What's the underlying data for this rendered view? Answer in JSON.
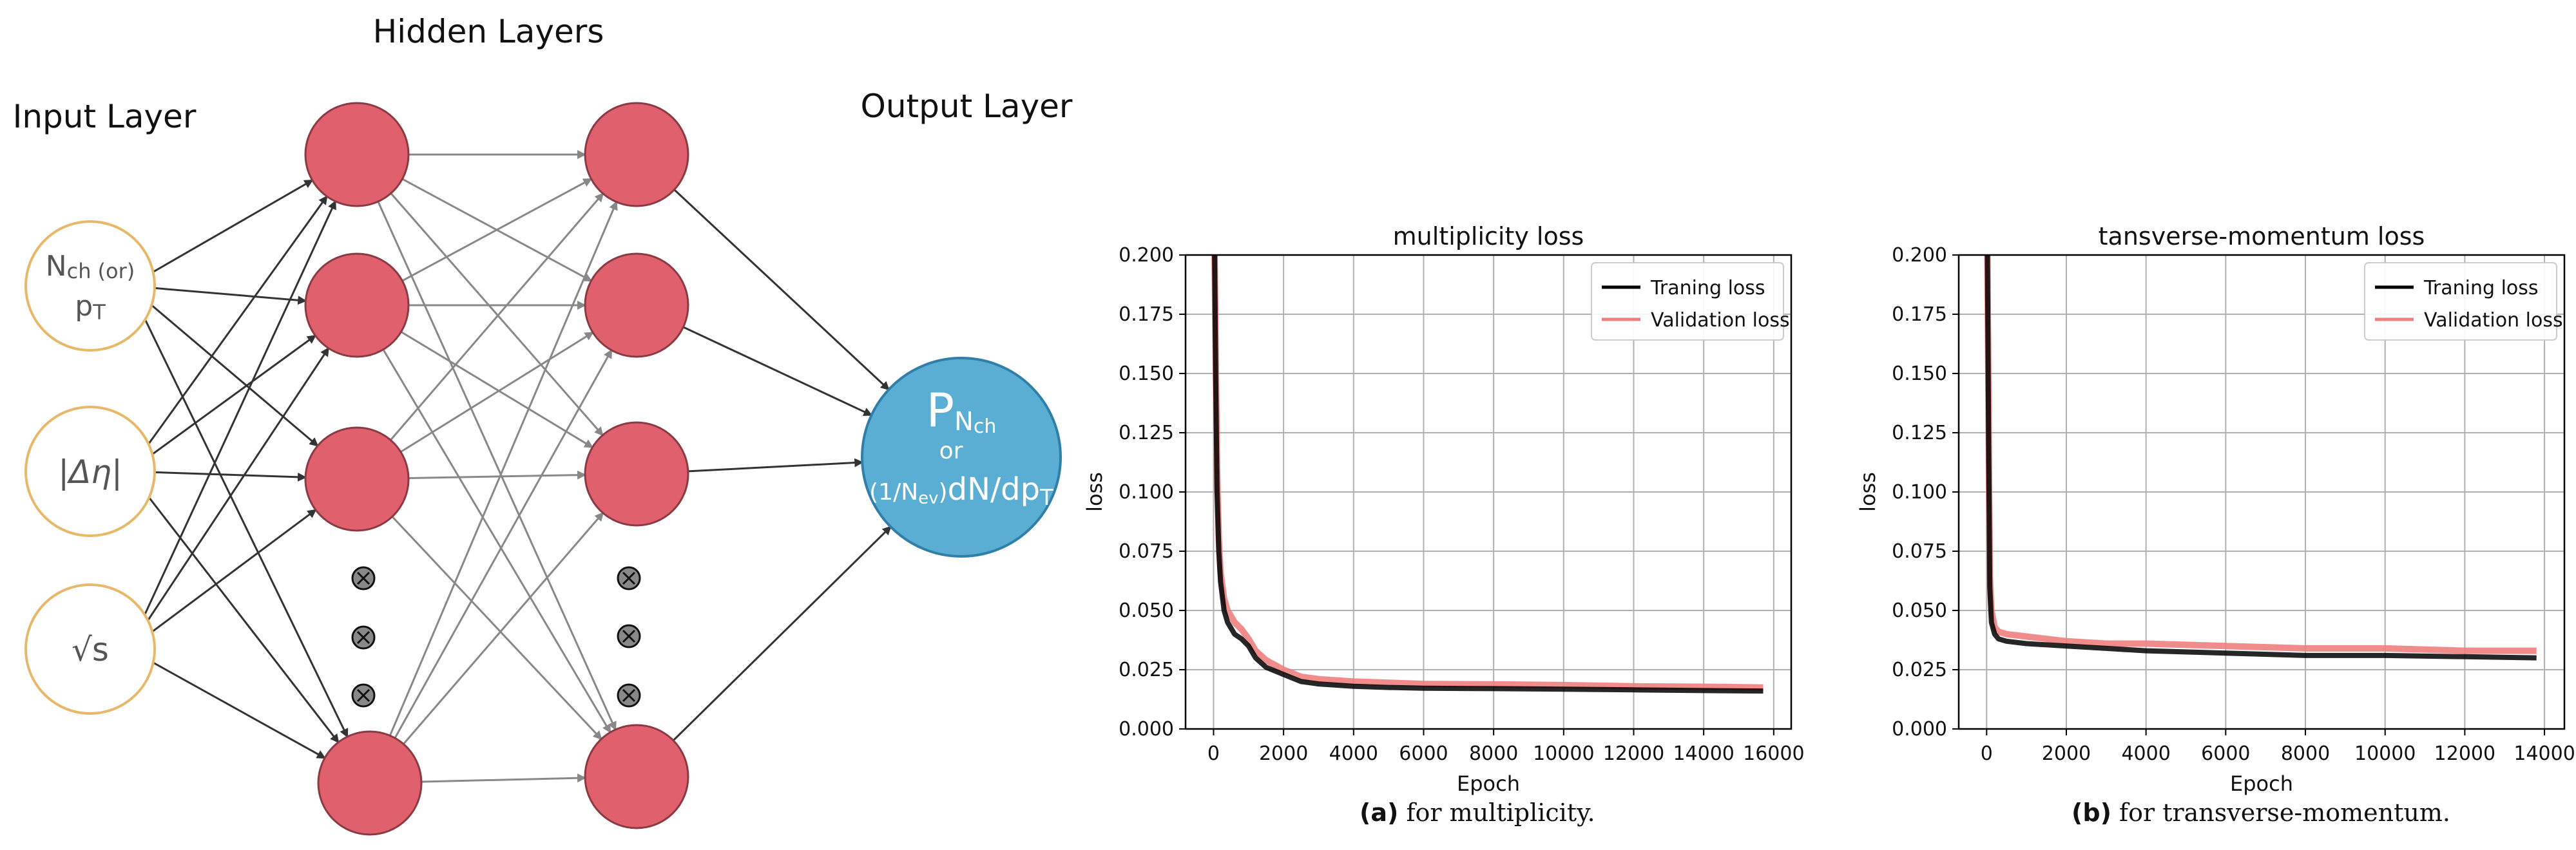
{
  "diagram": {
    "hidden_title": "Hidden Layers",
    "input_title": "Input Layer",
    "output_title": "Output Layer",
    "inputs": [
      {
        "main": "N",
        "sub": "ch",
        "extra": "(or)",
        "line2": "p",
        "line2_sub": "T"
      },
      {
        "label": "|Δη|"
      },
      {
        "label": "√s"
      }
    ],
    "output": {
      "main": "P",
      "main_sub": "N",
      "main_sub2": "ch",
      "mid": "or",
      "bottom_prefix": "(1/N",
      "bottom_prefix_sub": "ev",
      "bottom_close": ")",
      "bottom_main": "dN/dp",
      "bottom_sub": "T"
    },
    "colors": {
      "input_ring": "#e8b86a",
      "hidden": "#e0616d",
      "output": "#5aaed3",
      "edge_dark": "#333333",
      "edge_gray": "#888888"
    }
  },
  "chart_data": [
    {
      "type": "line",
      "title": "multiplicity loss",
      "xlabel": "Epoch",
      "ylabel": "loss",
      "xlim": [
        -800,
        16500
      ],
      "ylim": [
        0,
        0.2
      ],
      "xticks": [
        0,
        2000,
        4000,
        6000,
        8000,
        10000,
        12000,
        14000,
        16000
      ],
      "yticks": [
        0.0,
        0.025,
        0.05,
        0.075,
        0.1,
        0.125,
        0.15,
        0.175,
        0.2
      ],
      "ytick_labels": [
        "0.000",
        "0.025",
        "0.050",
        "0.075",
        "0.100",
        "0.125",
        "0.150",
        "0.175",
        "0.200"
      ],
      "grid": true,
      "legend": "top-right",
      "series": [
        {
          "name": "Traning loss",
          "color": "#000000",
          "x": [
            0,
            30,
            60,
            100,
            150,
            200,
            300,
            400,
            600,
            800,
            1000,
            1200,
            1500,
            2000,
            2500,
            3000,
            4000,
            5000,
            6000,
            8000,
            10000,
            12000,
            14000,
            15700
          ],
          "y": [
            0.2,
            0.2,
            0.15,
            0.1,
            0.075,
            0.062,
            0.05,
            0.045,
            0.04,
            0.038,
            0.035,
            0.03,
            0.026,
            0.023,
            0.02,
            0.019,
            0.018,
            0.0175,
            0.0172,
            0.017,
            0.0168,
            0.0165,
            0.0162,
            0.016
          ]
        },
        {
          "name": "Validation loss",
          "color": "#f08080",
          "x": [
            0,
            30,
            60,
            100,
            150,
            200,
            300,
            400,
            600,
            800,
            1000,
            1200,
            1500,
            2000,
            2500,
            3000,
            4000,
            5000,
            6000,
            8000,
            10000,
            12000,
            14000,
            15700
          ],
          "y": [
            0.2,
            0.2,
            0.16,
            0.11,
            0.08,
            0.066,
            0.055,
            0.05,
            0.045,
            0.042,
            0.038,
            0.033,
            0.029,
            0.025,
            0.022,
            0.021,
            0.02,
            0.0195,
            0.019,
            0.0188,
            0.0185,
            0.018,
            0.0178,
            0.0175
          ]
        }
      ]
    },
    {
      "type": "line",
      "title": "tansverse-momentum loss",
      "xlabel": "Epoch",
      "ylabel": "loss",
      "xlim": [
        -700,
        14500
      ],
      "ylim": [
        0,
        0.2
      ],
      "xticks": [
        0,
        2000,
        4000,
        6000,
        8000,
        10000,
        12000,
        14000
      ],
      "yticks": [
        0.0,
        0.025,
        0.05,
        0.075,
        0.1,
        0.125,
        0.15,
        0.175,
        0.2
      ],
      "ytick_labels": [
        "0.000",
        "0.025",
        "0.050",
        "0.075",
        "0.100",
        "0.125",
        "0.150",
        "0.175",
        "0.200"
      ],
      "grid": true,
      "legend": "top-right",
      "series": [
        {
          "name": "Traning loss",
          "color": "#000000",
          "x": [
            0,
            20,
            50,
            80,
            120,
            200,
            300,
            500,
            1000,
            2000,
            3000,
            4000,
            6000,
            8000,
            10000,
            12000,
            13800
          ],
          "y": [
            0.2,
            0.2,
            0.12,
            0.06,
            0.045,
            0.04,
            0.038,
            0.037,
            0.036,
            0.035,
            0.034,
            0.033,
            0.032,
            0.031,
            0.031,
            0.0305,
            0.03
          ]
        },
        {
          "name": "Validation loss",
          "color": "#f08080",
          "x": [
            0,
            20,
            50,
            80,
            120,
            200,
            300,
            500,
            1000,
            2000,
            3000,
            4000,
            6000,
            8000,
            10000,
            12000,
            13800
          ],
          "y": [
            0.2,
            0.2,
            0.13,
            0.065,
            0.05,
            0.043,
            0.041,
            0.04,
            0.039,
            0.037,
            0.036,
            0.036,
            0.035,
            0.034,
            0.034,
            0.033,
            0.033
          ]
        }
      ]
    }
  ],
  "captions": [
    {
      "label": "(a)",
      "text": " for multiplicity."
    },
    {
      "label": "(b)",
      "text": " for transverse-momentum."
    }
  ]
}
